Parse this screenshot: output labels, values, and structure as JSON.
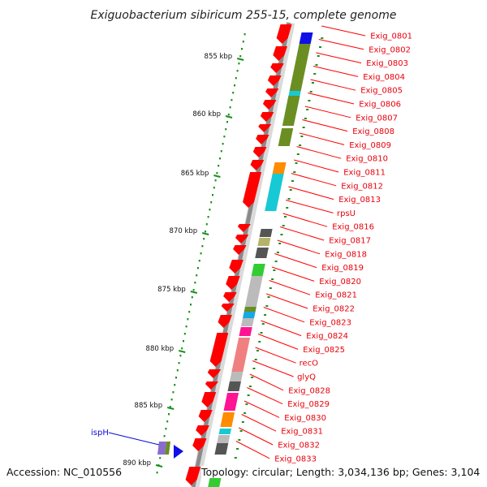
{
  "title": "Exiguobacterium sibiricum 255-15, complete genome",
  "footer": {
    "accession": "Accession: NC_010556",
    "topology": "Topology: circular; Length: 3,034,136 bp; Genes: 3,104"
  },
  "ruler_labels": [
    "855 kbp",
    "860 kbp",
    "865 kbp",
    "870 kbp",
    "875 kbp",
    "880 kbp",
    "885 kbp",
    "890 kbp"
  ],
  "genes": [
    "Exig_0801",
    "Exig_0802",
    "Exig_0803",
    "Exig_0804",
    "Exig_0805",
    "Exig_0806",
    "Exig_0807",
    "Exig_0808",
    "Exig_0809",
    "Exig_0810",
    "Exig_0811",
    "Exig_0812",
    "Exig_0813",
    "rpsU",
    "Exig_0816",
    "Exig_0817",
    "Exig_0818",
    "Exig_0819",
    "Exig_0820",
    "Exig_0821",
    "Exig_0822",
    "Exig_0823",
    "Exig_0824",
    "Exig_0825",
    "recO",
    "glyQ",
    "Exig_0828",
    "Exig_0829",
    "Exig_0830",
    "Exig_0831",
    "Exig_0832",
    "Exig_0833"
  ],
  "left_gene": "ispH",
  "colors": {
    "cds": "#ff0000",
    "label_red": "#e8000b",
    "label_blue": "#0a0adb",
    "backbone": "#8a8a8a",
    "ruler_dots": "#1a8f1a"
  }
}
